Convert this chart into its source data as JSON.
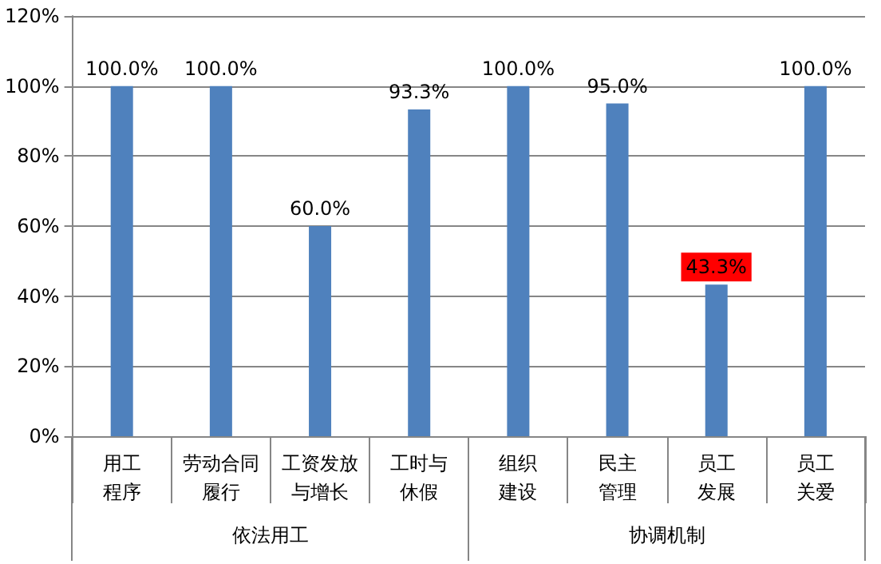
{
  "chart_data": {
    "type": "bar",
    "categories": [
      "用工程序",
      "劳动合同履行",
      "工资发放与增长",
      "工时与休假",
      "组织建设",
      "民主管理",
      "员工发展",
      "员工关爱"
    ],
    "values": [
      100.0,
      100.0,
      60.0,
      93.3,
      100.0,
      95.0,
      43.3,
      100.0
    ],
    "value_labels": [
      "100.0%",
      "100.0%",
      "60.0%",
      "93.3%",
      "100.0%",
      "95.0%",
      null,
      "100.0%"
    ],
    "color": "#4f81bd",
    "ylim": [
      0,
      120
    ],
    "yticks": [
      {
        "value": 0,
        "label": "0%"
      },
      {
        "value": 20,
        "label": "20%"
      },
      {
        "value": 40,
        "label": "40%"
      },
      {
        "value": 60,
        "label": "60%"
      },
      {
        "value": 80,
        "label": "80%"
      },
      {
        "value": 100,
        "label": "100%"
      },
      {
        "value": 120,
        "label": "120%"
      }
    ],
    "grid": "y",
    "annotations": [
      "依法用工",
      "协调机制",
      {
        "text": "43.3%",
        "x": "员工发展",
        "y": 43.3
      }
    ]
  }
}
